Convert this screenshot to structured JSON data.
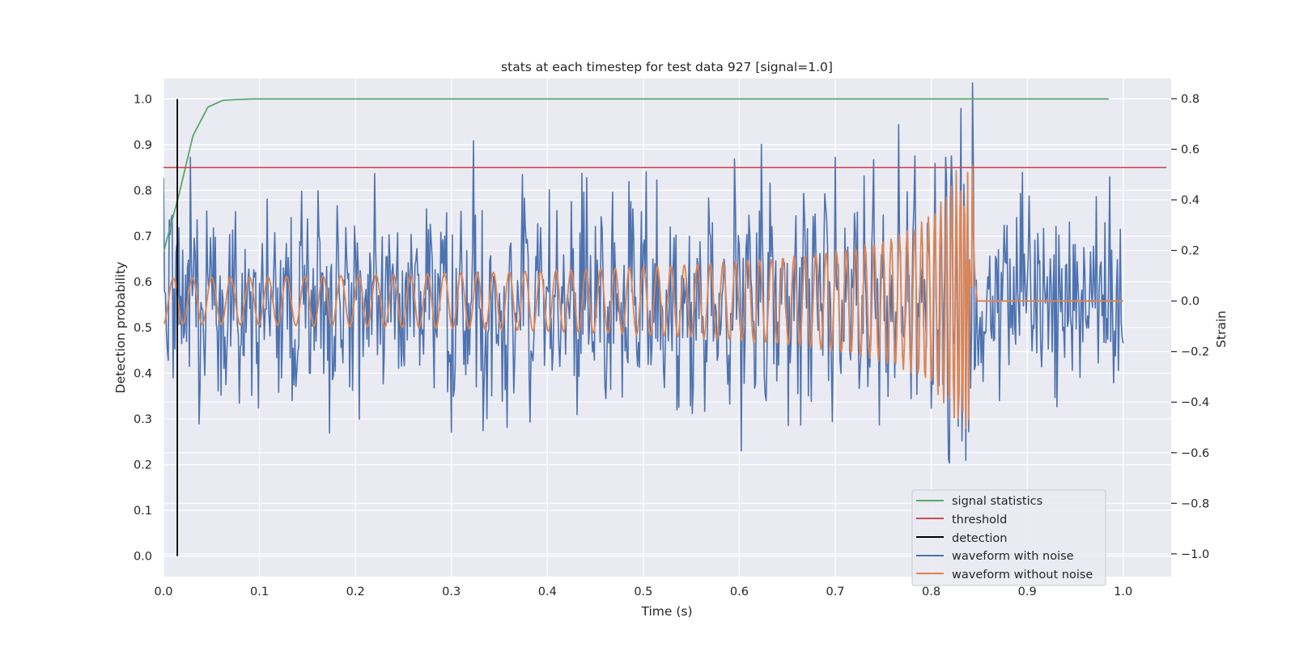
{
  "chart_data": {
    "type": "line",
    "title": "stats at each timestep for test data 927 [signal=1.0]",
    "xlabel": "Time (s)",
    "ylabel": "Detection probability",
    "y2label": "Strain",
    "xlim": [
      0.0,
      1.05
    ],
    "ylim": [
      -0.045,
      1.045
    ],
    "y2lim": [
      -1.09,
      0.88
    ],
    "x_ticks": [
      "0.0",
      "0.1",
      "0.2",
      "0.3",
      "0.4",
      "0.5",
      "0.6",
      "0.7",
      "0.8",
      "0.9",
      "1.0"
    ],
    "y_ticks": [
      "0.0",
      "0.1",
      "0.2",
      "0.3",
      "0.4",
      "0.5",
      "0.6",
      "0.7",
      "0.8",
      "0.9",
      "1.0"
    ],
    "y2_ticks": [
      "−1.0",
      "−0.8",
      "−0.6",
      "−0.4",
      "−0.2",
      "0.0",
      "0.2",
      "0.4",
      "0.6",
      "0.8"
    ],
    "grid": true,
    "legend_position": "lower right",
    "colors": {
      "background": "#eaeaf2",
      "grid": "#ffffff",
      "signal_statistics": "#55a868",
      "threshold": "#c44e52",
      "detection": "#000000",
      "waveform_noise": "#4c72b0",
      "waveform_clean": "#dd8452"
    },
    "series": [
      {
        "name": "signal statistics",
        "axis": "left",
        "x": [
          0.0,
          0.0154,
          0.0308,
          0.0462,
          0.0616,
          0.077,
          0.0924,
          0.1078,
          0.2,
          0.4,
          0.6,
          0.8,
          0.985
        ],
        "y": [
          0.665,
          0.785,
          0.92,
          0.982,
          0.997,
          0.999,
          1.0,
          1.0,
          1.0,
          1.0,
          1.0,
          1.0,
          1.0
        ]
      },
      {
        "name": "threshold",
        "axis": "left",
        "x": [
          0.0,
          1.045
        ],
        "y": [
          0.85,
          0.85
        ]
      },
      {
        "name": "detection",
        "axis": "left",
        "x": [
          0.0144,
          0.0144
        ],
        "y": [
          0.0,
          1.0
        ]
      },
      {
        "name": "waveform with noise",
        "axis": "right",
        "description_free": true,
        "x_range": [
          0.0,
          1.0
        ],
        "amplitude": 0.45
      },
      {
        "name": "waveform without noise",
        "axis": "right",
        "x_range": [
          0.0,
          1.0
        ],
        "merger_time": 0.843,
        "amplitude_start": 0.09,
        "amplitude_peak": 0.55
      }
    ]
  }
}
